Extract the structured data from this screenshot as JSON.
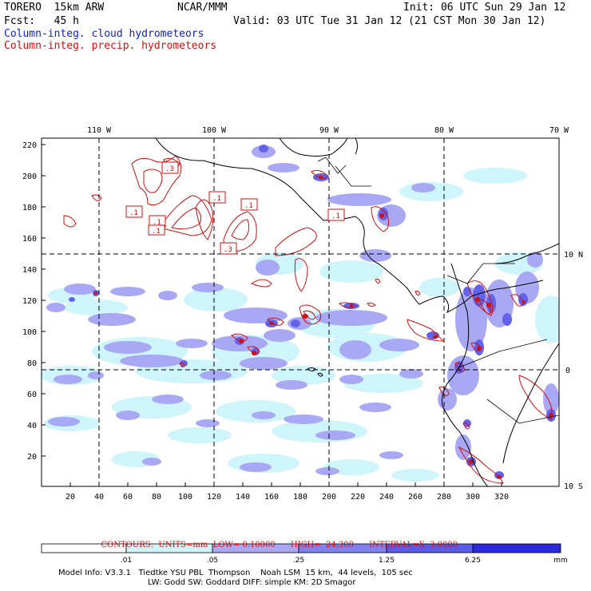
{
  "header": {
    "model": "TORERO  15km ARW",
    "org": "NCAR/MMM",
    "init": "Init: 06 UTC Sun 29 Jan 12",
    "fcst": "Fcst:   45 h",
    "valid": "Valid: 03 UTC Tue 31 Jan 12 (21 CST Mon 30 Jan 12)",
    "line_blue": "Column-integ. cloud hydrometeors",
    "line_red": "Column-integ. precip. hydrometeors"
  },
  "map": {
    "lon_labels": [
      "110 W",
      "100 W",
      "90 W",
      "80 W",
      "70 W"
    ],
    "lat_labels": [
      "10 N",
      "0",
      "10 S"
    ],
    "y_ticks": [
      "220",
      "200",
      "180",
      "160",
      "140",
      "120",
      "100",
      "80",
      "60",
      "40",
      "20"
    ],
    "x_ticks": [
      "20",
      "40",
      "60",
      "80",
      "100",
      "120",
      "140",
      "160",
      "180",
      "200",
      "220",
      "240",
      "260",
      "280",
      "300",
      "320"
    ],
    "contour_labels": [
      ".1",
      ".3",
      ".1",
      ".1",
      ".1",
      ".3",
      ".1",
      ".1"
    ],
    "colors": {
      "cloud_light": "#cdf5fb",
      "cloud_mid": "#a8a8f4",
      "cloud_dark": "#6262ec",
      "cloud_max": "#2a2adc",
      "precip_contour": "#d01010",
      "coastline": "#000000"
    }
  },
  "contour_info": {
    "label": "CONTOURS:",
    "units": "UNITS=mm",
    "low": "LOW= 0.10000",
    "high": "HIGH=  24.300",
    "interval": "INTERVAL=X  3.0000"
  },
  "colorbar": {
    "levels": [
      ".01",
      ".05",
      ".25",
      "1.25",
      "6.25"
    ],
    "units": "mm",
    "colors": [
      "#ffffff",
      "#cdf5fb",
      "#a8a8f4",
      "#8080f0",
      "#5a5ae8",
      "#2a2adc"
    ]
  },
  "footer": {
    "line1": "Model Info: V3.3.1   Tiedtke YSU PBL  Thompson    Noah LSM  15 km,  44 levels,  105 sec",
    "line2": "LW: Godd SW: Goddard DIFF: simple KM: 2D Smagor"
  }
}
